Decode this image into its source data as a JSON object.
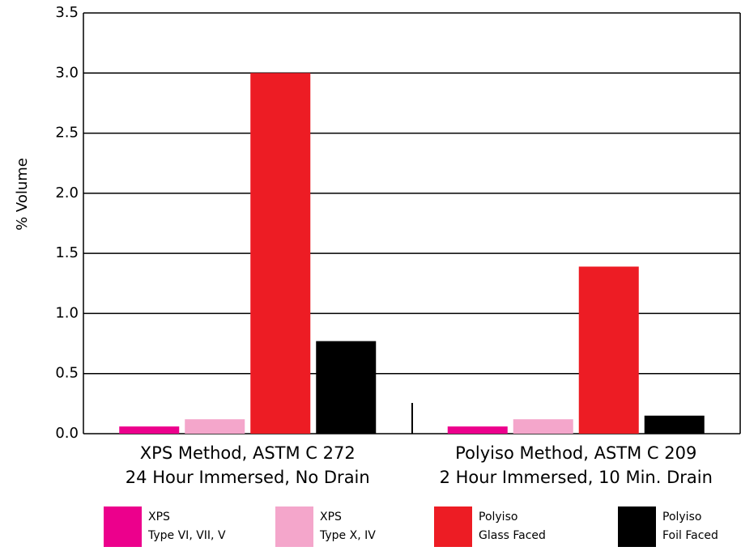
{
  "chart_data": {
    "type": "bar",
    "y_label": "% Volume",
    "categories": [
      [
        "XPS Method, ASTM C 272",
        "24 Hour Immersed, No Drain"
      ],
      [
        "Polyiso Method, ASTM C 209",
        "2 Hour Immersed, 10 Min. Drain"
      ]
    ],
    "series": [
      {
        "name": [
          "XPS",
          "Type VI, VII, V"
        ],
        "color": "#ec008c",
        "values": [
          0.06,
          0.06
        ]
      },
      {
        "name": [
          "XPS",
          "Type X, IV"
        ],
        "color": "#f4a6cb",
        "values": [
          0.12,
          0.12
        ]
      },
      {
        "name": [
          "Polyiso",
          "Glass Faced"
        ],
        "color": "#ed1c24",
        "values": [
          3.0,
          1.39
        ]
      },
      {
        "name": [
          "Polyiso",
          "Foil Faced"
        ],
        "color": "#000000",
        "values": [
          0.77,
          0.15
        ]
      }
    ],
    "ylim": [
      0,
      3.5
    ],
    "yticks": [
      {
        "value": 0,
        "label": "0.0"
      },
      0.5,
      {
        "value": 1,
        "label": "1.0"
      },
      1.5,
      {
        "value": 2,
        "label": "2.0"
      },
      2.5,
      {
        "value": 3,
        "label": "3.0"
      },
      3.5
    ],
    "grid": true
  }
}
